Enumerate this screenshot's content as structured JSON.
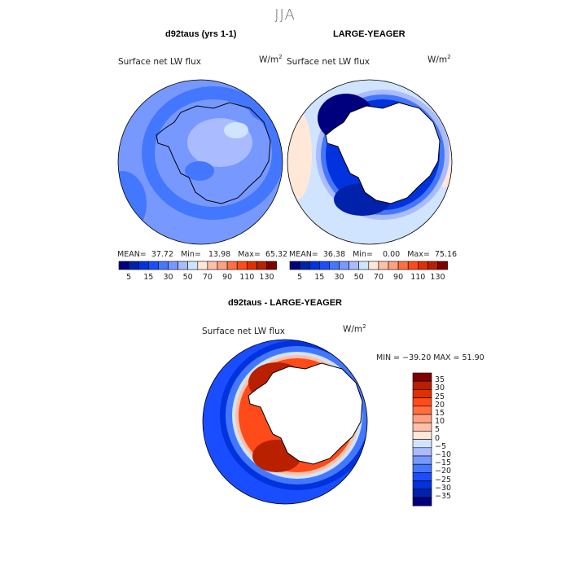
{
  "title": "JJA",
  "panels": [
    {
      "title": "d92taus (yrs 1-1)",
      "variable": "Surface net LW flux",
      "units_base": "W/m",
      "units_exp": "2",
      "stats": {
        "mean_label": "MEAN=",
        "mean": "37.72",
        "min_label": "Min=",
        "min": "13.98",
        "max_label": "Max=",
        "max": "65.32"
      }
    },
    {
      "title": "LARGE-YEAGER",
      "variable": "Surface net LW flux",
      "units_base": "W/m",
      "units_exp": "2",
      "stats": {
        "mean_label": "MEAN=",
        "mean": "36.38",
        "min_label": "Min=",
        "min": "0.00",
        "max_label": "Max=",
        "max": "75.16"
      }
    }
  ],
  "top_colorbar": {
    "labels": [
      "5",
      "15",
      "30",
      "50",
      "70",
      "90",
      "110",
      "130"
    ],
    "colors": [
      "#00007f",
      "#0022aa",
      "#0033dd",
      "#1a4dff",
      "#4477ff",
      "#7799ff",
      "#aabbff",
      "#d0e4ff",
      "#ffe8d8",
      "#ffc0a8",
      "#ffa080",
      "#ff7040",
      "#ff4a1a",
      "#e03000",
      "#b82000",
      "#800000"
    ]
  },
  "diff": {
    "title": "d92taus - LARGE-YEAGER",
    "variable": "Surface net LW flux",
    "units_base": "W/m",
    "units_exp": "2",
    "minmax": "MIN = −39.20 MAX =  51.90",
    "colorbar_labels": [
      "35",
      "30",
      "25",
      "20",
      "15",
      "10",
      "5",
      "0",
      "−5",
      "−10",
      "−15",
      "−20",
      "−25",
      "−30",
      "−35"
    ]
  }
}
